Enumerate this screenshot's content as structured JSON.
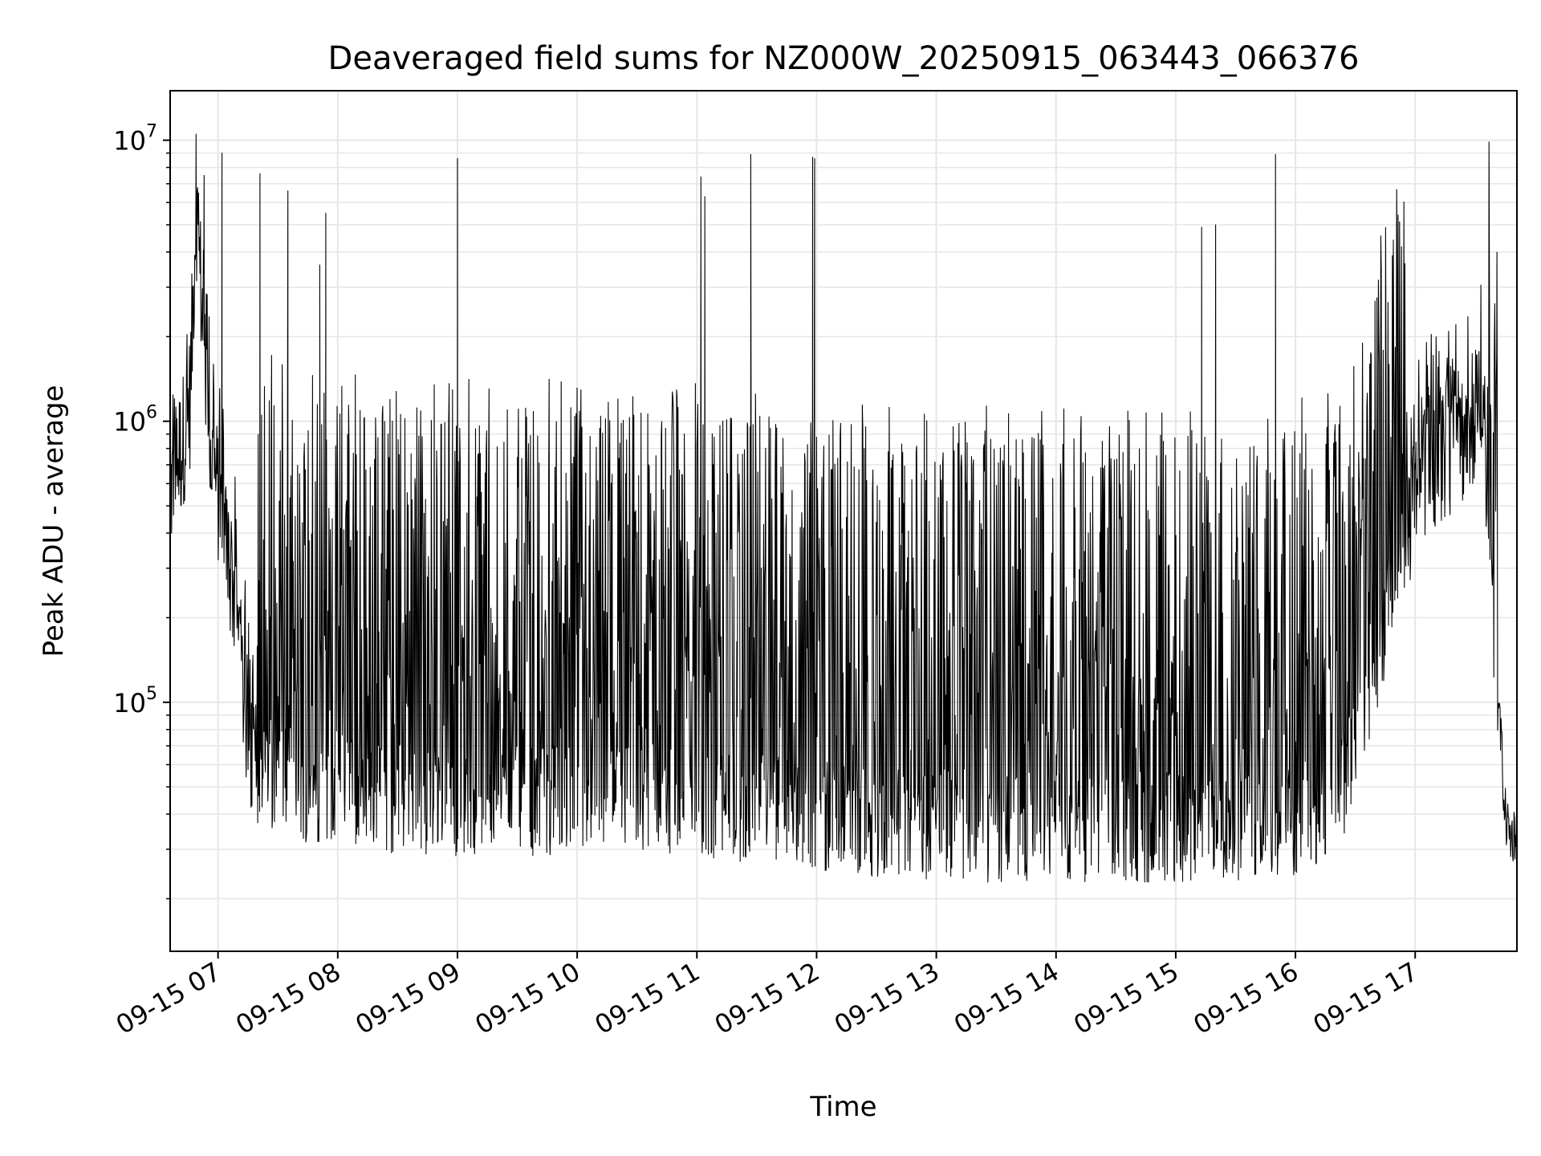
{
  "chart_data": {
    "type": "line",
    "title": "Deaveraged field sums for NZ000W_20250915_063443_066376",
    "xlabel": "Time",
    "ylabel": "Peak ADU - average",
    "yscale": "log",
    "ylim": [
      13000,
      15000000
    ],
    "xlim": [
      "2025-09-15 06:36",
      "2025-09-15 17:51"
    ],
    "grid": true,
    "line_color": "#000000",
    "grid_color": "#e6e6e6",
    "x_ticks": [
      "09-15 07",
      "09-15 08",
      "09-15 09",
      "09-15 10",
      "09-15 11",
      "09-15 12",
      "09-15 13",
      "09-15 14",
      "09-15 15",
      "09-15 16",
      "09-15 17"
    ],
    "y_ticks": [
      {
        "base": "10",
        "exp": "5",
        "value": 100000
      },
      {
        "base": "10",
        "exp": "6",
        "value": 1000000
      },
      {
        "base": "10",
        "exp": "7",
        "value": 10000000
      }
    ],
    "series": [
      {
        "points": [
          [
            "2025-09-15 06:36",
            550000
          ],
          [
            "2025-09-15 06:39",
            700000
          ],
          [
            "2025-09-15 06:42",
            820000
          ],
          [
            "2025-09-15 06:46",
            1200000
          ],
          [
            "2025-09-15 06:49",
            6000000
          ],
          [
            "2025-09-15 06:52",
            2500000
          ],
          [
            "2025-09-15 06:56",
            800000
          ],
          [
            "2025-09-15 07:00",
            550000
          ],
          [
            "2025-09-15 07:03",
            400000
          ],
          [
            "2025-09-15 07:08",
            250000
          ],
          [
            "2025-09-15 07:12",
            120000
          ],
          [
            "2025-09-15 07:16",
            70000
          ],
          [
            "2025-09-15 07:20",
            60000
          ],
          [
            "2025-09-15 07:30",
            55000
          ],
          [
            "2025-09-15 07:45",
            50000
          ],
          [
            "2025-09-15 08:00",
            50000
          ],
          [
            "2025-09-15 08:30",
            45000
          ],
          [
            "2025-09-15 09:00",
            45000
          ],
          [
            "2025-09-15 09:30",
            45000
          ],
          [
            "2025-09-15 10:00",
            45000
          ],
          [
            "2025-09-15 10:30",
            45000
          ],
          [
            "2025-09-15 11:00",
            45000
          ],
          [
            "2025-09-15 11:30",
            42000
          ],
          [
            "2025-09-15 12:00",
            40000
          ],
          [
            "2025-09-15 12:30",
            38000
          ],
          [
            "2025-09-15 13:00",
            37000
          ],
          [
            "2025-09-15 13:30",
            36000
          ],
          [
            "2025-09-15 14:00",
            36000
          ],
          [
            "2025-09-15 14:30",
            36000
          ],
          [
            "2025-09-15 15:00",
            36000
          ],
          [
            "2025-09-15 15:30",
            36000
          ],
          [
            "2025-09-15 16:00",
            38000
          ],
          [
            "2025-09-15 16:20",
            45000
          ],
          [
            "2025-09-15 16:35",
            80000
          ],
          [
            "2025-09-15 16:45",
            200000
          ],
          [
            "2025-09-15 16:55",
            400000
          ],
          [
            "2025-09-15 17:05",
            700000
          ],
          [
            "2025-09-15 17:15",
            800000
          ],
          [
            "2025-09-15 17:25",
            900000
          ],
          [
            "2025-09-15 17:33",
            1100000
          ],
          [
            "2025-09-15 17:38",
            250000
          ],
          [
            "2025-09-15 17:42",
            100000
          ],
          [
            "2025-09-15 17:45",
            40000
          ],
          [
            "2025-09-15 17:48",
            33000
          ],
          [
            "2025-09-15 17:51",
            35000
          ]
        ],
        "spikes": [
          [
            "2025-09-15 06:49",
            10500000
          ],
          [
            "2025-09-15 06:53",
            7500000
          ],
          [
            "2025-09-15 07:02",
            9000000
          ],
          [
            "2025-09-15 07:02",
            4100000
          ],
          [
            "2025-09-15 07:21",
            7600000
          ],
          [
            "2025-09-15 07:35",
            6600000
          ],
          [
            "2025-09-15 07:54",
            5500000
          ],
          [
            "2025-09-15 07:51",
            3600000
          ],
          [
            "2025-09-15 09:00",
            8600000
          ],
          [
            "2025-09-15 11:02",
            7400000
          ],
          [
            "2025-09-15 11:04",
            6300000
          ],
          [
            "2025-09-15 11:27",
            8900000
          ],
          [
            "2025-09-15 11:58",
            8700000
          ],
          [
            "2025-09-15 11:59",
            8600000
          ],
          [
            "2025-09-15 15:13",
            4900000
          ],
          [
            "2025-09-15 15:20",
            5000000
          ],
          [
            "2025-09-15 15:50",
            8900000
          ],
          [
            "2025-09-15 17:41",
            4000000
          ]
        ]
      }
    ]
  }
}
